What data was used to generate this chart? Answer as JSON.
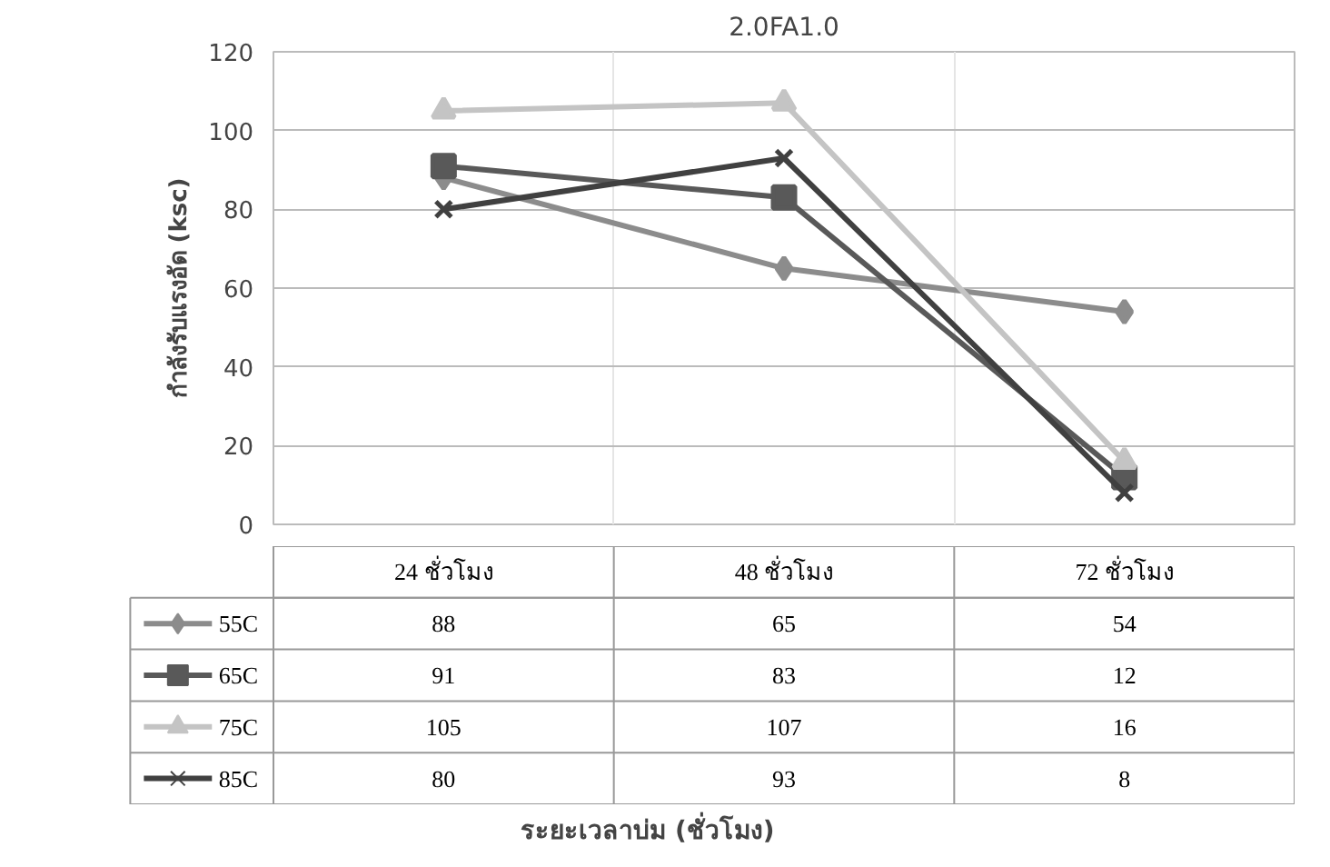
{
  "chart_data": {
    "type": "line",
    "title": "2.0FA1.0",
    "ylabel": "กำลังรับแรงอัด (ksc)",
    "annotations": [
      "ระยะเวลาบ่ม (ชั่วโมง)"
    ],
    "legend": "bottom left",
    "categories": [
      "24 ชั่วโมง",
      "48 ชั่วโมง",
      "72 ชั่วโมง"
    ],
    "ylim": [
      0,
      120
    ],
    "yticks": [
      0,
      20,
      40,
      60,
      80,
      100,
      120
    ],
    "grid": true,
    "data_labels": true,
    "series": [
      {
        "name": "55C",
        "color": "#8c8c8c",
        "marker": "diamond",
        "values": [
          88,
          65,
          54
        ]
      },
      {
        "name": "65C",
        "color": "#595959",
        "marker": "square",
        "values": [
          91,
          83,
          12
        ]
      },
      {
        "name": "75C",
        "color": "#c4c4c4",
        "marker": "triangle",
        "values": [
          105,
          107,
          16
        ]
      },
      {
        "name": "85C",
        "color": "#404040",
        "marker": "cross",
        "values": [
          80,
          93,
          8
        ]
      }
    ]
  }
}
